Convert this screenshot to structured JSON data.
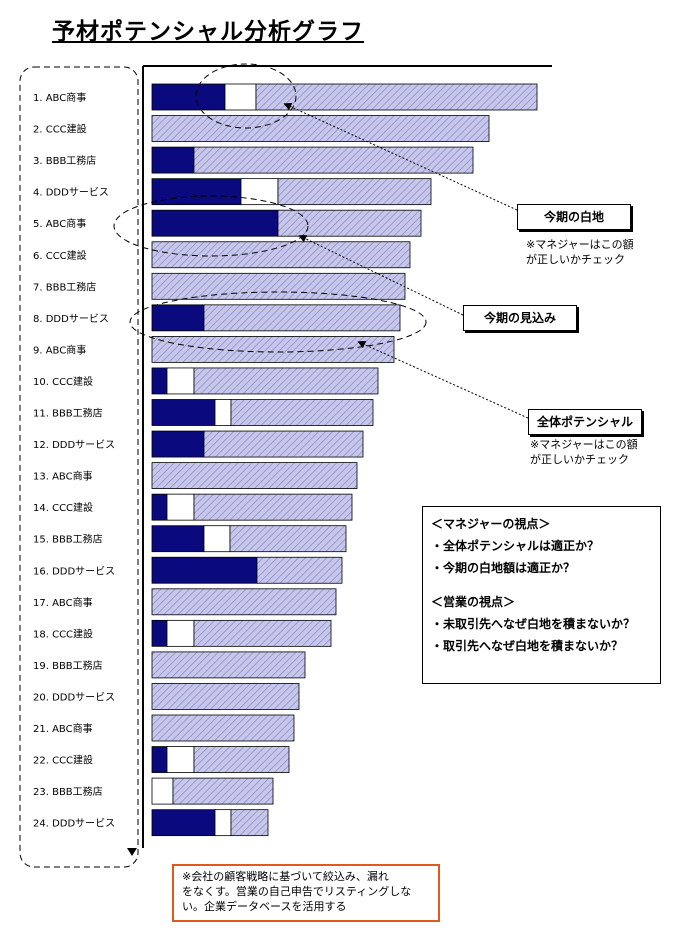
{
  "title": "予材ポテンシャル分析グラフ",
  "colors": {
    "actual": "#0a0a7e",
    "blank": "#ffffff",
    "potential": "#c7c7ec",
    "hatch": "#8f8fc6",
    "accent": "#e05a1e"
  },
  "chart_data": {
    "type": "bar",
    "orientation": "horizontal",
    "stacked": true,
    "categories": [
      "1. ABC商事",
      "2. CCC建設",
      "3. BBB工務店",
      "4. DDDサービス",
      "5. ABC商事",
      "6. CCC建設",
      "7. BBB工務店",
      "8. DDDサービス",
      "9. ABC商事",
      "10. CCC建設",
      "11. BBB工務店",
      "12. DDDサービス",
      "13. ABC商事",
      "14. CCC建設",
      "15. BBB工務店",
      "16. DDDサービス",
      "17. ABC商事",
      "18. CCC建設",
      "19. BBB工務店",
      "20. DDDサービス",
      "21. ABC商事",
      "22. CCC建設",
      "23. BBB工務店",
      "24. DDDサービス"
    ],
    "series": [
      {
        "name": "今期の見込み",
        "values": [
          73,
          0,
          42,
          89,
          126,
          0,
          0,
          52,
          0,
          15,
          63,
          52,
          0,
          15,
          52,
          105,
          0,
          15,
          0,
          0,
          0,
          15,
          0,
          63
        ]
      },
      {
        "name": "今期の白地",
        "values": [
          31,
          0,
          0,
          37,
          0,
          0,
          0,
          0,
          0,
          27,
          16,
          0,
          0,
          27,
          26,
          0,
          0,
          27,
          0,
          0,
          0,
          27,
          21,
          16
        ]
      },
      {
        "name": "全体ポテンシャル",
        "values": [
          281,
          337,
          279,
          153,
          143,
          258,
          253,
          196,
          242,
          184,
          142,
          159,
          205,
          158,
          116,
          85,
          184,
          137,
          153,
          147,
          142,
          95,
          100,
          37
        ]
      }
    ],
    "xlabel": "",
    "ylabel": "",
    "grid": false,
    "legend": "none"
  },
  "callouts": {
    "blank": "今期の白地",
    "blank_note": [
      "※マネジャーはこの額",
      "が正しいかチェック"
    ],
    "forecast": "今期の見込み",
    "potential": "全体ポテンシャル",
    "potential_note": [
      "※マネジャーはこの額",
      "が正しいかチェック"
    ]
  },
  "viewpoints": {
    "manager_heading": "＜マネジャーの視点＞",
    "manager_items": [
      "・全体ポテンシャルは適正か？",
      "・今期の白地額は適正か？"
    ],
    "sales_heading": "＜営業の視点＞",
    "sales_items": [
      "・未取引先へなぜ白地を積まないか？",
      "・取引先へなぜ白地を積まないか？"
    ]
  },
  "footnote": [
    "※会社の顧客戦略に基づいて絞込み、漏れ",
    "をなくす。営業の自己申告でリスティングしな",
    "い。企業データベースを活用する"
  ]
}
